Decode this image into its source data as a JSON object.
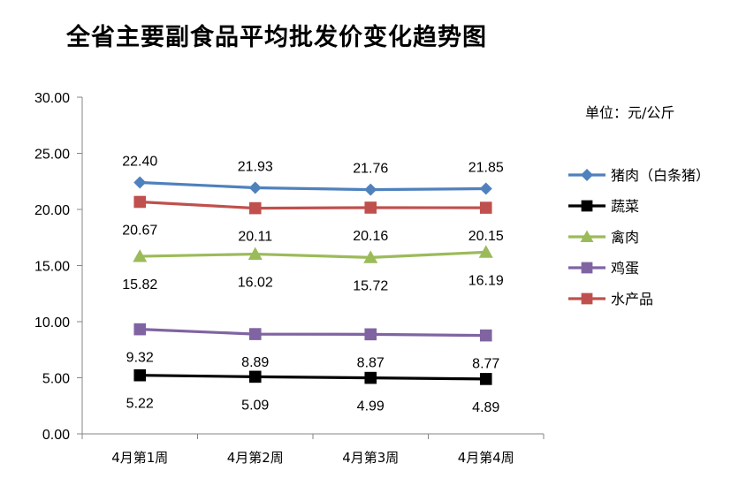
{
  "chart_data": {
    "type": "line",
    "title": "全省主要副食品平均批发价变化趋势图",
    "unit_label": "单位：元/公斤",
    "categories": [
      "4月第1周",
      "4月第2周",
      "4月第3周",
      "4月第4周"
    ],
    "ylim": [
      0,
      30
    ],
    "yticks": [
      "0.00",
      "5.00",
      "10.00",
      "15.00",
      "20.00",
      "25.00",
      "30.00"
    ],
    "grid": false,
    "legend_position": "right",
    "series": [
      {
        "name": "猪肉（白条猪）",
        "values": [
          22.4,
          21.93,
          21.76,
          21.85
        ],
        "color": "#4F81BD",
        "marker": "diamond",
        "labels": [
          "22.40",
          "21.93",
          "21.76",
          "21.85"
        ],
        "label_pos": "above"
      },
      {
        "name": "蔬菜",
        "values": [
          5.22,
          5.09,
          4.99,
          4.89
        ],
        "color": "#000000",
        "marker": "square",
        "labels": [
          "5.22",
          "5.09",
          "4.99",
          "4.89"
        ],
        "label_pos": "below"
      },
      {
        "name": "禽肉",
        "values": [
          15.82,
          16.02,
          15.72,
          16.19
        ],
        "color": "#9BBB59",
        "marker": "triangle",
        "labels": [
          "15.82",
          "16.02",
          "15.72",
          "16.19"
        ],
        "label_pos": "below"
      },
      {
        "name": "鸡蛋",
        "values": [
          9.32,
          8.89,
          8.87,
          8.77
        ],
        "color": "#8064A2",
        "marker": "square",
        "labels": [
          "9.32",
          "8.89",
          "8.87",
          "8.77"
        ],
        "label_pos": "below"
      },
      {
        "name": "水产品",
        "values": [
          20.67,
          20.11,
          20.16,
          20.15
        ],
        "color": "#C0504D",
        "marker": "square",
        "labels": [
          "20.67",
          "20.11",
          "20.16",
          "20.15"
        ],
        "label_pos": "below"
      }
    ]
  }
}
